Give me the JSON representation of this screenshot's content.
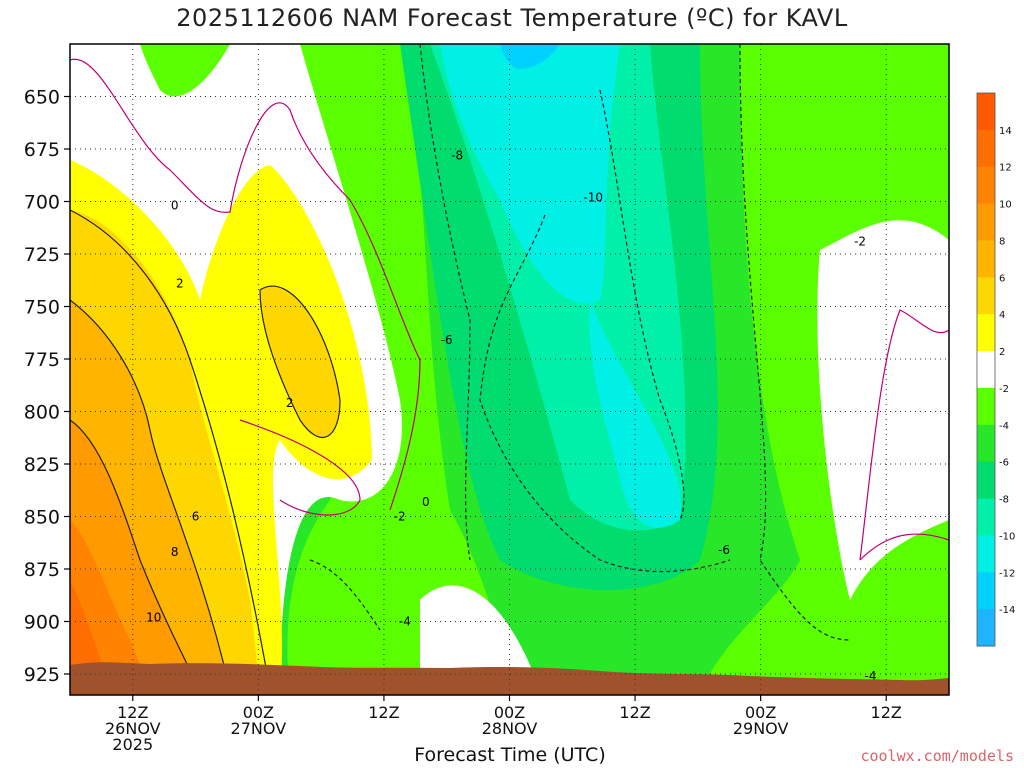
{
  "title": "2025112606 NAM Forecast Temperature (ºC) for KAVL",
  "credit": "coolwx.com/models",
  "chart_data": {
    "type": "heatmap",
    "title": "2025112606 NAM Forecast Temperature (ºC) for KAVL",
    "xlabel": "Forecast Time (UTC)",
    "ylabel": "",
    "x_range_hours_utc": [
      "2025-11-26 06Z",
      "2025-11-29 18Z"
    ],
    "x_ticks": [
      {
        "label": "12Z",
        "date": "26NOV",
        "year": "2025",
        "hour": 12
      },
      {
        "label": "00Z",
        "date": "27NOV",
        "year": "",
        "hour": 24
      },
      {
        "label": "12Z",
        "date": "",
        "year": "",
        "hour": 36
      },
      {
        "label": "00Z",
        "date": "28NOV",
        "year": "",
        "hour": 48
      },
      {
        "label": "12Z",
        "date": "",
        "year": "",
        "hour": 60
      },
      {
        "label": "00Z",
        "date": "29NOV",
        "year": "",
        "hour": 72
      },
      {
        "label": "12Z",
        "date": "",
        "year": "",
        "hour": 84
      }
    ],
    "y_range_hpa": [
      935,
      625
    ],
    "y_ticks": [
      "650",
      "675",
      "700",
      "725",
      "750",
      "775",
      "800",
      "825",
      "850",
      "875",
      "900",
      "925"
    ],
    "colorbar_levels": [
      "14",
      "12",
      "10",
      "8",
      "6",
      "4",
      "2",
      "-2",
      "-4",
      "-6",
      "-8",
      "-10",
      "-12",
      "-14"
    ],
    "colorbar_colors": [
      "#ff5a00",
      "#ff6e00",
      "#ff8200",
      "#ff9a00",
      "#ffb400",
      "#ffd700",
      "#ffff00",
      "#ffffff",
      "#5aff00",
      "#28e628",
      "#00dc6e",
      "#00f0aa",
      "#00f0e6",
      "#00d2ff",
      "#1eb4ff"
    ],
    "contour_labels": [
      {
        "text": "0",
        "hour": 16.0,
        "hpa": 702
      },
      {
        "text": "2",
        "hour": 16.5,
        "hpa": 739
      },
      {
        "text": "2",
        "hour": 27.0,
        "hpa": 796
      },
      {
        "text": "6",
        "hour": 18.0,
        "hpa": 850
      },
      {
        "text": "8",
        "hour": 16.0,
        "hpa": 867
      },
      {
        "text": "10",
        "hour": 14.0,
        "hpa": 898
      },
      {
        "text": "0",
        "hour": 40.0,
        "hpa": 843
      },
      {
        "text": "-2",
        "hour": 37.5,
        "hpa": 850
      },
      {
        "text": "-4",
        "hour": 38.0,
        "hpa": 900
      },
      {
        "text": "-6",
        "hour": 42.0,
        "hpa": 766
      },
      {
        "text": "-8",
        "hour": 43.0,
        "hpa": 678
      },
      {
        "text": "-10",
        "hour": 56.0,
        "hpa": 698
      },
      {
        "text": "-6",
        "hour": 68.5,
        "hpa": 866
      },
      {
        "text": "-2",
        "hour": 81.5,
        "hpa": 719
      },
      {
        "text": "-4",
        "hour": 82.5,
        "hpa": 926
      }
    ],
    "grid": true,
    "legend": "colorbar-right"
  }
}
